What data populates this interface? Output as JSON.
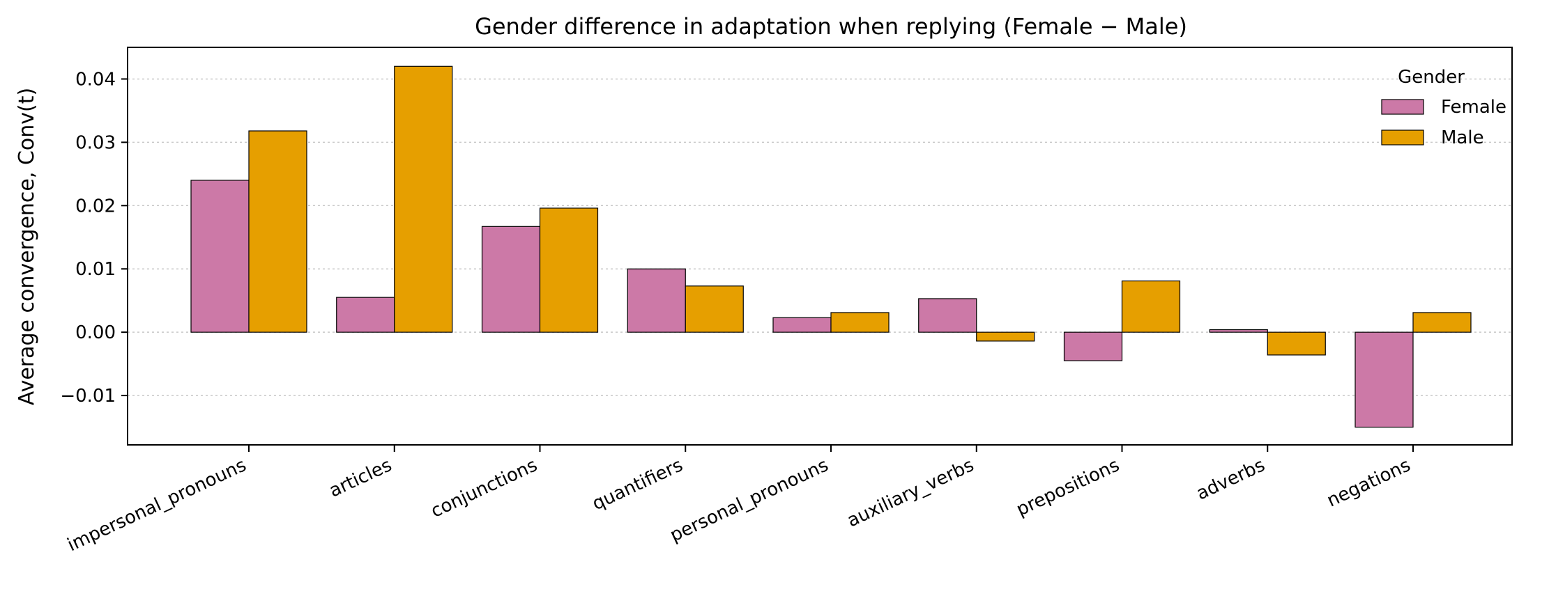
{
  "chart_data": {
    "type": "bar",
    "title": "Gender difference in adaptation when replying (Female − Male)",
    "xlabel": "",
    "ylabel": "Average convergence, Conv(t)",
    "categories": [
      "impersonal_pronouns",
      "articles",
      "conjunctions",
      "quantifiers",
      "personal_pronouns",
      "auxiliary_verbs",
      "prepositions",
      "adverbs",
      "negations"
    ],
    "series": [
      {
        "name": "Female",
        "color": "#CC79A7",
        "values": [
          0.024,
          0.0055,
          0.0167,
          0.01,
          0.0023,
          0.0053,
          -0.0045,
          0.0004,
          -0.015
        ]
      },
      {
        "name": "Male",
        "color": "#E69F00",
        "values": [
          0.0318,
          0.042,
          0.0196,
          0.0073,
          0.0031,
          -0.0014,
          0.0081,
          -0.0036,
          0.0031
        ]
      }
    ],
    "ylim": [
      -0.0178,
      0.045
    ],
    "yticks": [
      -0.01,
      0.0,
      0.01,
      0.02,
      0.03,
      0.04
    ],
    "ytick_labels": [
      "−0.01",
      "0.00",
      "0.01",
      "0.02",
      "0.03",
      "0.04"
    ],
    "grid": "y, dotted",
    "legend": {
      "title": "Gender",
      "placement": "top-right"
    }
  }
}
